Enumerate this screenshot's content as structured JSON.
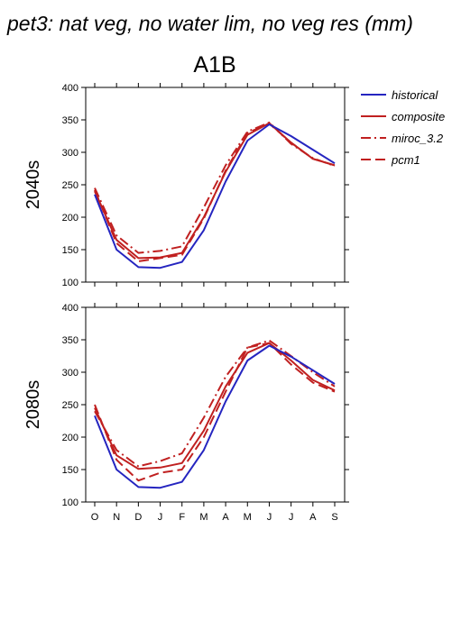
{
  "figure": {
    "title": "pet3: nat veg, no water lim, no veg res (mm)",
    "subtitle": "A1B"
  },
  "colors": {
    "historical": "#2525c0",
    "scenario": "#c02020"
  },
  "legend": [
    {
      "name": "historical",
      "dash": "solid",
      "color": "#2525c0"
    },
    {
      "name": "composite",
      "dash": "solid",
      "color": "#c02020"
    },
    {
      "name": "miroc_3.2",
      "dash": "dashdot",
      "color": "#c02020"
    },
    {
      "name": "pcm1",
      "dash": "dashed",
      "color": "#c02020"
    }
  ],
  "chart_data": [
    {
      "type": "line",
      "row_label": "2040s",
      "categories": [
        "O",
        "N",
        "D",
        "J",
        "F",
        "M",
        "A",
        "M",
        "J",
        "J",
        "A",
        "S"
      ],
      "ylim": [
        100,
        400
      ],
      "yticks": [
        100,
        150,
        200,
        250,
        300,
        350,
        400
      ],
      "series": [
        {
          "name": "historical",
          "values": [
            235,
            150,
            123,
            122,
            131,
            180,
            255,
            318,
            343,
            325,
            304,
            283
          ]
        },
        {
          "name": "composite",
          "values": [
            240,
            165,
            137,
            138,
            145,
            200,
            270,
            327,
            345,
            315,
            290,
            280
          ]
        },
        {
          "name": "miroc_3.2",
          "values": [
            245,
            172,
            145,
            148,
            155,
            215,
            280,
            332,
            346,
            313,
            291,
            279
          ]
        },
        {
          "name": "pcm1",
          "values": [
            242,
            160,
            132,
            137,
            142,
            198,
            272,
            330,
            344,
            315,
            290,
            280
          ]
        }
      ]
    },
    {
      "type": "line",
      "row_label": "2080s",
      "categories": [
        "O",
        "N",
        "D",
        "J",
        "F",
        "M",
        "A",
        "M",
        "J",
        "J",
        "A",
        "S"
      ],
      "ylim": [
        100,
        400
      ],
      "yticks": [
        100,
        150,
        200,
        250,
        300,
        350,
        400
      ],
      "series": [
        {
          "name": "historical",
          "values": [
            233,
            150,
            123,
            122,
            131,
            180,
            255,
            318,
            341,
            324,
            303,
            282
          ]
        },
        {
          "name": "composite",
          "values": [
            245,
            172,
            151,
            153,
            160,
            210,
            278,
            330,
            345,
            318,
            288,
            272
          ]
        },
        {
          "name": "miroc_3.2",
          "values": [
            240,
            180,
            155,
            163,
            175,
            230,
            293,
            338,
            349,
            325,
            300,
            278
          ]
        },
        {
          "name": "pcm1",
          "values": [
            250,
            165,
            133,
            145,
            150,
            200,
            270,
            338,
            345,
            312,
            284,
            270
          ]
        }
      ]
    }
  ]
}
